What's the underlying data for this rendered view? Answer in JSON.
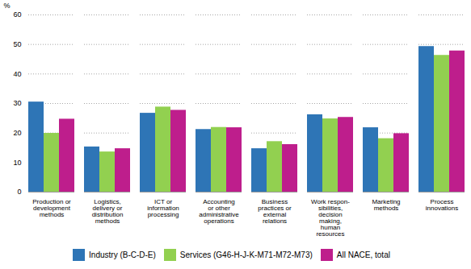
{
  "chart_data": {
    "type": "bar",
    "categories": [
      "Production or\ndevelopment\nmethods",
      "Logistics,\ndelivery or\ndistribution\nmethods",
      "ICT or\ninformation\nprocessing",
      "Accounting\nor other\nadministrative\noperations",
      "Business\npractices or\nexternal\nrelations",
      "Work respon-\nsibilities,\ndecision\nmaking,\nhuman\nresources",
      "Marketing\nmethods",
      "Process\ninnovations"
    ],
    "series": [
      {
        "name": "Industry (B-C-D-E)",
        "color": "#2e75b6",
        "values": [
          30.5,
          15.3,
          26.7,
          21.2,
          14.7,
          26.2,
          21.8,
          49.3
        ]
      },
      {
        "name": "Services (G46-H-J-K-M71-M72-M73)",
        "color": "#92d050",
        "values": [
          19.9,
          13.6,
          28.8,
          21.9,
          17.1,
          24.8,
          18.1,
          46.3
        ]
      },
      {
        "name": "All NACE, total",
        "color": "#be1e8c",
        "values": [
          24.7,
          14.7,
          27.7,
          21.8,
          16.1,
          25.3,
          19.8,
          47.8
        ]
      }
    ],
    "ylabel": "%",
    "ylim": [
      0,
      60
    ],
    "yticks": [
      0,
      10,
      20,
      30,
      40,
      50,
      60
    ],
    "grid": true,
    "legend": "bottom"
  }
}
